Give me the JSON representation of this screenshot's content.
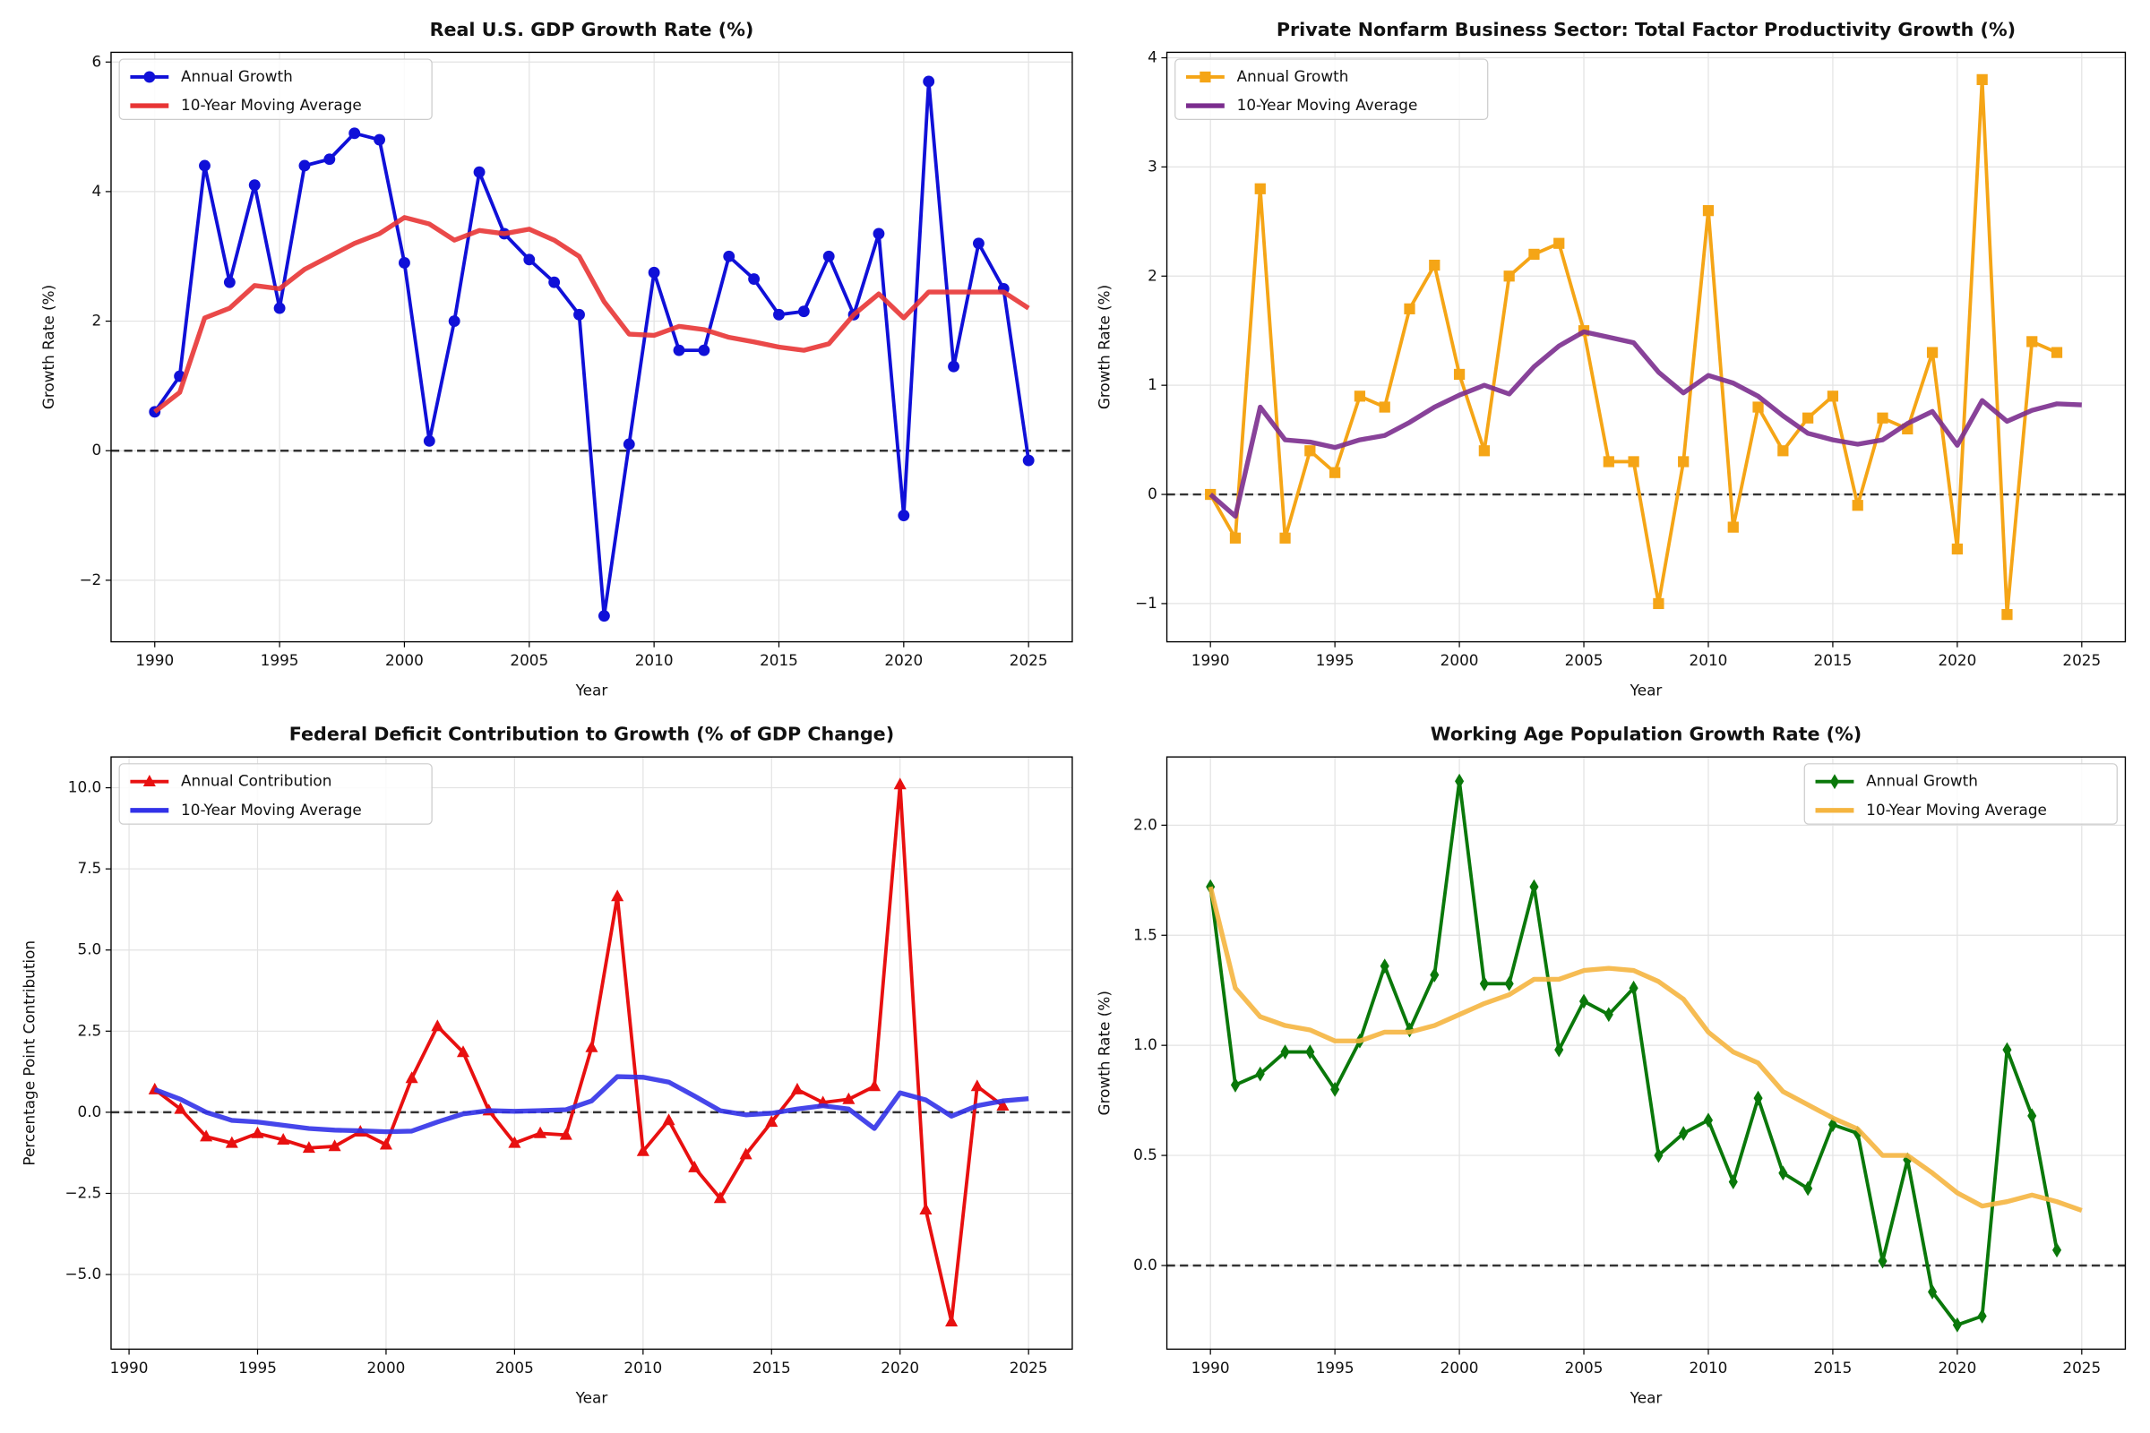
{
  "chart_data": [
    {
      "type": "line",
      "title": "Real U.S. GDP Growth Rate (%)",
      "xlabel": "Year",
      "ylabel": "Growth Rate (%)",
      "x": [
        1990,
        1991,
        1992,
        1993,
        1994,
        1995,
        1996,
        1997,
        1998,
        1999,
        2000,
        2001,
        2002,
        2003,
        2004,
        2005,
        2006,
        2007,
        2008,
        2009,
        2010,
        2011,
        2012,
        2013,
        2014,
        2015,
        2016,
        2017,
        2018,
        2019,
        2020,
        2021,
        2022,
        2023,
        2024,
        2025
      ],
      "series": [
        {
          "name": "Annual Growth",
          "color": "#1010d8",
          "marker": "circle",
          "width": 2.5,
          "values": [
            0.6,
            1.15,
            4.4,
            2.6,
            4.1,
            2.2,
            4.4,
            4.5,
            4.9,
            4.8,
            2.9,
            0.15,
            2.0,
            4.3,
            3.35,
            2.95,
            2.6,
            2.1,
            -2.55,
            0.1,
            2.75,
            1.55,
            1.55,
            3.0,
            2.65,
            2.1,
            2.15,
            3.0,
            2.1,
            3.35,
            -1.0,
            5.7,
            1.3,
            3.2,
            2.5,
            -0.15
          ]
        },
        {
          "name": "10-Year Moving Average",
          "color": "#e83535",
          "marker": "none",
          "width": 3.5,
          "values": [
            0.6,
            0.9,
            2.05,
            2.2,
            2.55,
            2.5,
            2.8,
            3.0,
            3.2,
            3.35,
            3.6,
            3.5,
            3.25,
            3.4,
            3.35,
            3.42,
            3.25,
            3.0,
            2.3,
            1.8,
            1.78,
            1.92,
            1.87,
            1.75,
            1.68,
            1.6,
            1.55,
            1.65,
            2.1,
            2.42,
            2.05,
            2.45,
            2.45,
            2.45,
            2.45,
            2.2
          ]
        }
      ],
      "xlim": [
        1988.25,
        2026.75
      ],
      "ylim": [
        -2.95,
        6.15
      ],
      "xticks": [
        1990,
        1995,
        2000,
        2005,
        2010,
        2015,
        2020,
        2025
      ],
      "yticks": [
        {
          "value": -2,
          "label": "−2"
        },
        0,
        2,
        4,
        6
      ],
      "grid": true,
      "legend": "upper left",
      "hline": 0
    },
    {
      "type": "line",
      "title": "Private Nonfarm Business Sector: Total Factor Productivity Growth (%)",
      "xlabel": "Year",
      "ylabel": "Growth Rate (%)",
      "x": [
        1990,
        1991,
        1992,
        1993,
        1994,
        1995,
        1996,
        1997,
        1998,
        1999,
        2000,
        2001,
        2002,
        2003,
        2004,
        2005,
        2006,
        2007,
        2008,
        2009,
        2010,
        2011,
        2012,
        2013,
        2014,
        2015,
        2016,
        2017,
        2018,
        2019,
        2020,
        2021,
        2022,
        2023,
        2024,
        2025
      ],
      "series": [
        {
          "name": "Annual Growth",
          "color": "#f5a516",
          "marker": "square",
          "width": 2.5,
          "values": [
            0,
            -0.4,
            2.8,
            -0.4,
            0.4,
            0.2,
            0.9,
            0.8,
            1.7,
            2.1,
            1.1,
            0.4,
            2.0,
            2.2,
            2.3,
            1.5,
            0.3,
            0.3,
            -1.0,
            0.3,
            2.6,
            -0.3,
            0.8,
            0.4,
            0.7,
            0.9,
            -0.1,
            0.7,
            0.6,
            1.3,
            -0.5,
            3.8,
            -1.1,
            1.4,
            1.3,
            null
          ]
        },
        {
          "name": "10-Year Moving Average",
          "color": "#7b2d8e",
          "marker": "none",
          "width": 3.5,
          "values": [
            0,
            -0.2,
            0.8,
            0.5,
            0.48,
            0.43,
            0.5,
            0.54,
            0.66,
            0.8,
            0.91,
            1.0,
            0.92,
            1.17,
            1.36,
            1.49,
            1.44,
            1.39,
            1.12,
            0.93,
            1.09,
            1.02,
            0.9,
            0.72,
            0.56,
            0.5,
            0.46,
            0.5,
            0.65,
            0.76,
            0.45,
            0.86,
            0.67,
            0.77,
            0.83,
            0.82
          ]
        }
      ],
      "xlim": [
        1988.25,
        2026.75
      ],
      "ylim": [
        -1.35,
        4.05
      ],
      "xticks": [
        1990,
        1995,
        2000,
        2005,
        2010,
        2015,
        2020,
        2025
      ],
      "yticks": [
        {
          "value": -1,
          "label": "−1"
        },
        0,
        1,
        2,
        3,
        4
      ],
      "grid": true,
      "legend": "upper left",
      "hline": 0
    },
    {
      "type": "line",
      "title": "Federal Deficit Contribution to Growth (% of GDP Change)",
      "xlabel": "Year",
      "ylabel": "Percentage Point Contribution",
      "x": [
        1991,
        1992,
        1993,
        1994,
        1995,
        1996,
        1997,
        1998,
        1999,
        2000,
        2001,
        2002,
        2003,
        2004,
        2005,
        2006,
        2007,
        2008,
        2009,
        2010,
        2011,
        2012,
        2013,
        2014,
        2015,
        2016,
        2017,
        2018,
        2019,
        2020,
        2021,
        2022,
        2023,
        2024,
        2025
      ],
      "series": [
        {
          "name": "Annual Contribution",
          "color": "#e81010",
          "marker": "triangle",
          "width": 2.5,
          "values": [
            0.7,
            0.1,
            -0.75,
            -0.95,
            -0.65,
            -0.85,
            -1.1,
            -1.05,
            -0.6,
            -1.0,
            1.05,
            2.65,
            1.85,
            0.05,
            -0.95,
            -0.65,
            -0.7,
            2.0,
            6.65,
            -1.2,
            -0.25,
            -1.7,
            -2.65,
            -1.3,
            -0.3,
            0.7,
            0.3,
            0.4,
            0.8,
            10.1,
            -3.0,
            -6.45,
            0.8,
            0.2,
            null
          ]
        },
        {
          "name": "10-Year Moving Average",
          "color": "#3232e8",
          "marker": "none",
          "width": 3.5,
          "values": [
            0.7,
            0.4,
            0.0,
            -0.25,
            -0.3,
            -0.4,
            -0.5,
            -0.55,
            -0.57,
            -0.6,
            -0.58,
            -0.3,
            -0.05,
            0.05,
            0.03,
            0.05,
            0.08,
            0.35,
            1.1,
            1.08,
            0.93,
            0.5,
            0.05,
            -0.08,
            -0.03,
            0.1,
            0.2,
            0.1,
            -0.5,
            0.6,
            0.38,
            -0.12,
            0.2,
            0.35,
            0.42
          ]
        }
      ],
      "xlim": [
        1989.3,
        2026.7
      ],
      "ylim": [
        -7.3,
        10.95
      ],
      "xticks": [
        1990,
        1995,
        2000,
        2005,
        2010,
        2015,
        2020,
        2025
      ],
      "yticks": [
        {
          "value": -5,
          "label": "−5.0"
        },
        {
          "value": -2.5,
          "label": "−2.5"
        },
        {
          "value": 0,
          "label": "0.0"
        },
        2.5,
        {
          "value": 5,
          "label": "5.0"
        },
        7.5,
        {
          "value": 10,
          "label": "10.0"
        }
      ],
      "grid": true,
      "legend": "upper left",
      "hline": 0
    },
    {
      "type": "line",
      "title": "Working Age Population Growth Rate (%)",
      "xlabel": "Year",
      "ylabel": "Growth Rate (%)",
      "x": [
        1990,
        1991,
        1992,
        1993,
        1994,
        1995,
        1996,
        1997,
        1998,
        1999,
        2000,
        2001,
        2002,
        2003,
        2004,
        2005,
        2006,
        2007,
        2008,
        2009,
        2010,
        2011,
        2012,
        2013,
        2014,
        2015,
        2016,
        2017,
        2018,
        2019,
        2020,
        2021,
        2022,
        2023,
        2024,
        2025
      ],
      "series": [
        {
          "name": "Annual Growth",
          "color": "#0a780a",
          "marker": "diamond",
          "width": 2.5,
          "values": [
            1.72,
            0.82,
            0.87,
            0.97,
            0.97,
            0.8,
            1.02,
            1.36,
            1.07,
            1.32,
            2.2,
            1.28,
            1.28,
            1.72,
            0.98,
            1.2,
            1.14,
            1.26,
            0.5,
            0.6,
            0.66,
            0.38,
            0.76,
            0.42,
            0.35,
            0.64,
            0.6,
            0.02,
            0.48,
            -0.12,
            -0.27,
            -0.23,
            0.98,
            0.68,
            0.07,
            null
          ]
        },
        {
          "name": "10-Year Moving Average",
          "color": "#f5b540",
          "marker": "none",
          "width": 3.5,
          "values": [
            1.72,
            1.26,
            1.13,
            1.09,
            1.07,
            1.02,
            1.02,
            1.06,
            1.06,
            1.09,
            1.14,
            1.19,
            1.23,
            1.3,
            1.3,
            1.34,
            1.35,
            1.34,
            1.29,
            1.21,
            1.06,
            0.97,
            0.92,
            0.79,
            0.73,
            0.67,
            0.62,
            0.5,
            0.5,
            0.42,
            0.33,
            0.27,
            0.29,
            0.32,
            0.29,
            0.25
          ]
        }
      ],
      "xlim": [
        1988.25,
        2026.75
      ],
      "ylim": [
        -0.38,
        2.31
      ],
      "xticks": [
        1990,
        1995,
        2000,
        2005,
        2010,
        2015,
        2020,
        2025
      ],
      "yticks": [
        {
          "value": 0,
          "label": "0.0"
        },
        {
          "value": 0.5,
          "label": "0.5"
        },
        {
          "value": 1,
          "label": "1.0"
        },
        {
          "value": 1.5,
          "label": "1.5"
        },
        {
          "value": 2,
          "label": "2.0"
        }
      ],
      "grid": true,
      "legend": "upper right",
      "hline": 0
    }
  ]
}
